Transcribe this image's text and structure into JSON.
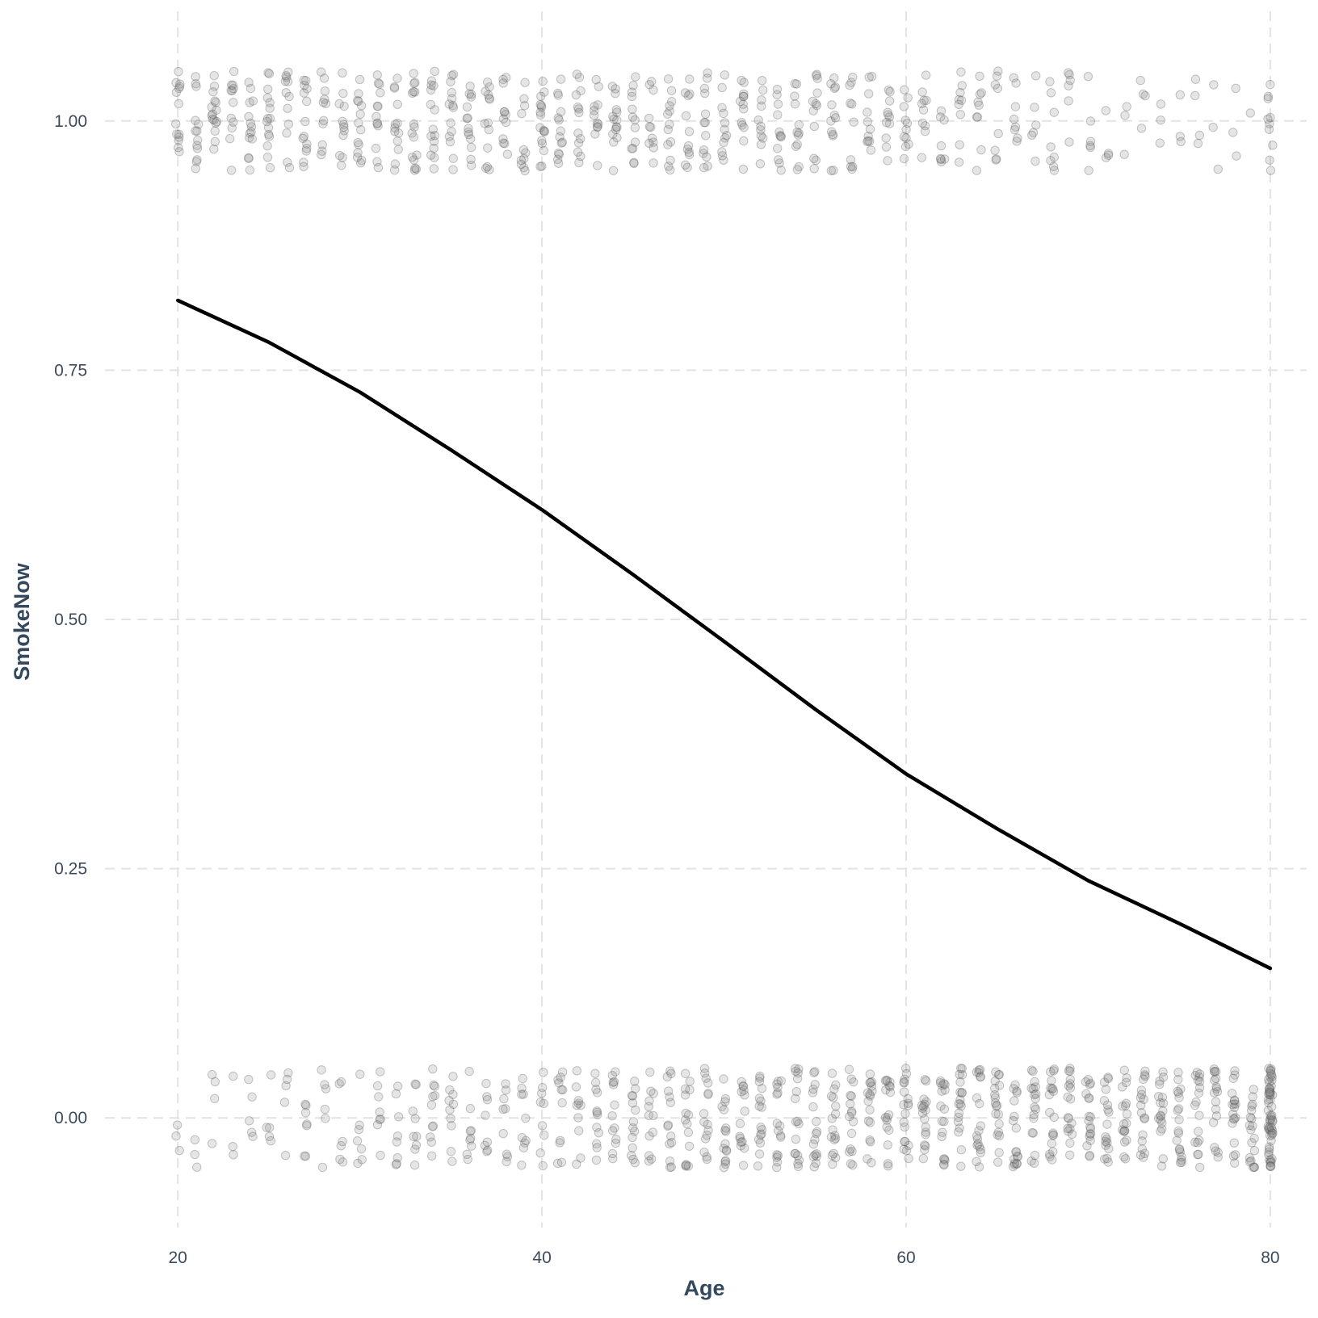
{
  "chart_data": {
    "type": "scatter",
    "title": "",
    "xlabel": "Age",
    "ylabel": "SmokeNow",
    "xlim": [
      16,
      82
    ],
    "ylim": [
      -0.11,
      1.11
    ],
    "x_ticks": [
      20,
      40,
      60,
      80
    ],
    "x_tick_labels": [
      "20",
      "40",
      "60",
      "80"
    ],
    "y_ticks": [
      0,
      0.25,
      0.5,
      0.75,
      1
    ],
    "y_tick_labels": [
      "0.00",
      "0.25",
      "0.50",
      "0.75",
      "1.00"
    ],
    "grid": true,
    "legend": "none",
    "jitter": {
      "x": 0.4,
      "y": 0.05
    },
    "point_color": "#555555",
    "line_color": "#000000",
    "points_summary": {
      "description_of_counts": "approximate number of jittered observations per integer age",
      "ages": [
        20,
        21,
        22,
        23,
        24,
        25,
        26,
        27,
        28,
        29,
        30,
        31,
        32,
        33,
        34,
        35,
        36,
        37,
        38,
        39,
        40,
        41,
        42,
        43,
        44,
        45,
        46,
        47,
        48,
        49,
        50,
        51,
        52,
        53,
        54,
        55,
        56,
        57,
        58,
        59,
        60,
        61,
        62,
        63,
        64,
        65,
        66,
        67,
        68,
        69,
        70,
        71,
        72,
        73,
        74,
        75,
        76,
        77,
        78,
        79,
        80
      ],
      "smoke_1_counts": [
        14,
        13,
        16,
        12,
        14,
        15,
        12,
        14,
        11,
        12,
        14,
        13,
        13,
        16,
        15,
        14,
        14,
        13,
        12,
        11,
        17,
        14,
        13,
        12,
        15,
        13,
        11,
        13,
        12,
        13,
        12,
        13,
        11,
        12,
        12,
        12,
        13,
        10,
        11,
        11,
        11,
        10,
        8,
        9,
        9,
        8,
        8,
        6,
        8,
        6,
        6,
        4,
        3,
        4,
        3,
        3,
        4,
        3,
        3,
        1,
        10
      ],
      "smoke_0_counts": [
        3,
        3,
        4,
        3,
        5,
        5,
        5,
        7,
        6,
        6,
        7,
        8,
        8,
        9,
        11,
        10,
        9,
        8,
        9,
        10,
        9,
        11,
        10,
        12,
        13,
        14,
        12,
        14,
        15,
        15,
        16,
        15,
        16,
        16,
        17,
        17,
        17,
        16,
        17,
        17,
        19,
        18,
        18,
        19,
        19,
        19,
        18,
        18,
        19,
        18,
        19,
        18,
        18,
        18,
        18,
        19,
        18,
        18,
        19,
        19,
        60
      ]
    },
    "series": [
      {
        "name": "",
        "x": [
          20,
          25,
          30,
          35,
          40,
          45,
          50,
          55,
          60,
          65,
          70,
          75,
          80
        ],
        "y": [
          0.82,
          0.778,
          0.728,
          0.67,
          0.61,
          0.545,
          0.478,
          0.41,
          0.345,
          0.29,
          0.238,
          0.195,
          0.15
        ]
      }
    ]
  }
}
